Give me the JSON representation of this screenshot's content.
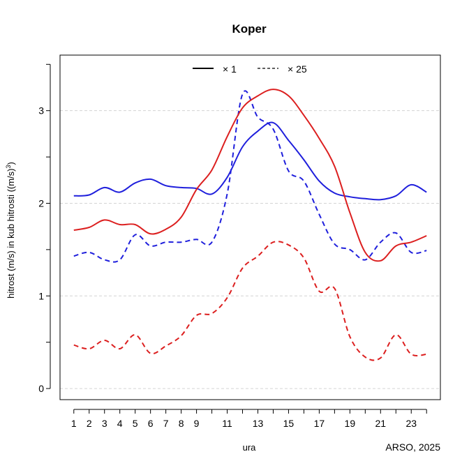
{
  "chart_data": {
    "type": "line",
    "title": "Koper",
    "xlabel": "ura",
    "ylabel": "hitrost (m/s) in kub hitrosti ((m/s)",
    "ylabel_superscript": "3",
    "ylabel_tail": ")",
    "credit": "ARSO, 2025",
    "x": [
      1,
      2,
      3,
      4,
      5,
      6,
      7,
      8,
      9,
      10,
      11,
      12,
      13,
      14,
      15,
      16,
      17,
      18,
      19,
      20,
      21,
      22,
      23,
      24
    ],
    "xticks": [
      1,
      2,
      3,
      4,
      5,
      6,
      7,
      8,
      9,
      11,
      13,
      15,
      17,
      19,
      21,
      23
    ],
    "yticks": [
      0,
      1,
      2,
      3
    ],
    "xlim": [
      0.1,
      24.9
    ],
    "ylim": [
      -0.12,
      3.6
    ],
    "grid": "horizontal dashed",
    "legend_position": "top",
    "legend": [
      {
        "label": "× 1",
        "style": "solid"
      },
      {
        "label": "× 25",
        "style": "dashed"
      }
    ],
    "series": [
      {
        "color": "#1f1fdc",
        "style": "solid",
        "values": [
          2.08,
          2.09,
          2.17,
          2.12,
          2.22,
          2.26,
          2.19,
          2.17,
          2.16,
          2.1,
          2.28,
          2.61,
          2.78,
          2.87,
          2.68,
          2.47,
          2.24,
          2.11,
          2.07,
          2.05,
          2.04,
          2.08,
          2.2,
          2.12
        ]
      },
      {
        "color": "#1f1fdc",
        "style": "dashed",
        "values": [
          1.43,
          1.47,
          1.39,
          1.39,
          1.66,
          1.54,
          1.58,
          1.58,
          1.61,
          1.58,
          2.1,
          3.18,
          2.93,
          2.8,
          2.35,
          2.24,
          1.88,
          1.56,
          1.5,
          1.39,
          1.58,
          1.68,
          1.47,
          1.49
        ]
      },
      {
        "color": "#dc1f1f",
        "style": "solid",
        "values": [
          1.71,
          1.74,
          1.82,
          1.77,
          1.77,
          1.67,
          1.72,
          1.85,
          2.15,
          2.36,
          2.72,
          3.03,
          3.16,
          3.23,
          3.16,
          2.95,
          2.7,
          2.4,
          1.9,
          1.47,
          1.38,
          1.54,
          1.58,
          1.65
        ]
      },
      {
        "color": "#dc1f1f",
        "style": "dashed",
        "values": [
          0.47,
          0.43,
          0.52,
          0.43,
          0.58,
          0.38,
          0.46,
          0.57,
          0.79,
          0.81,
          0.98,
          1.3,
          1.43,
          1.58,
          1.55,
          1.41,
          1.05,
          1.08,
          0.56,
          0.34,
          0.33,
          0.58,
          0.37,
          0.37
        ]
      }
    ]
  }
}
